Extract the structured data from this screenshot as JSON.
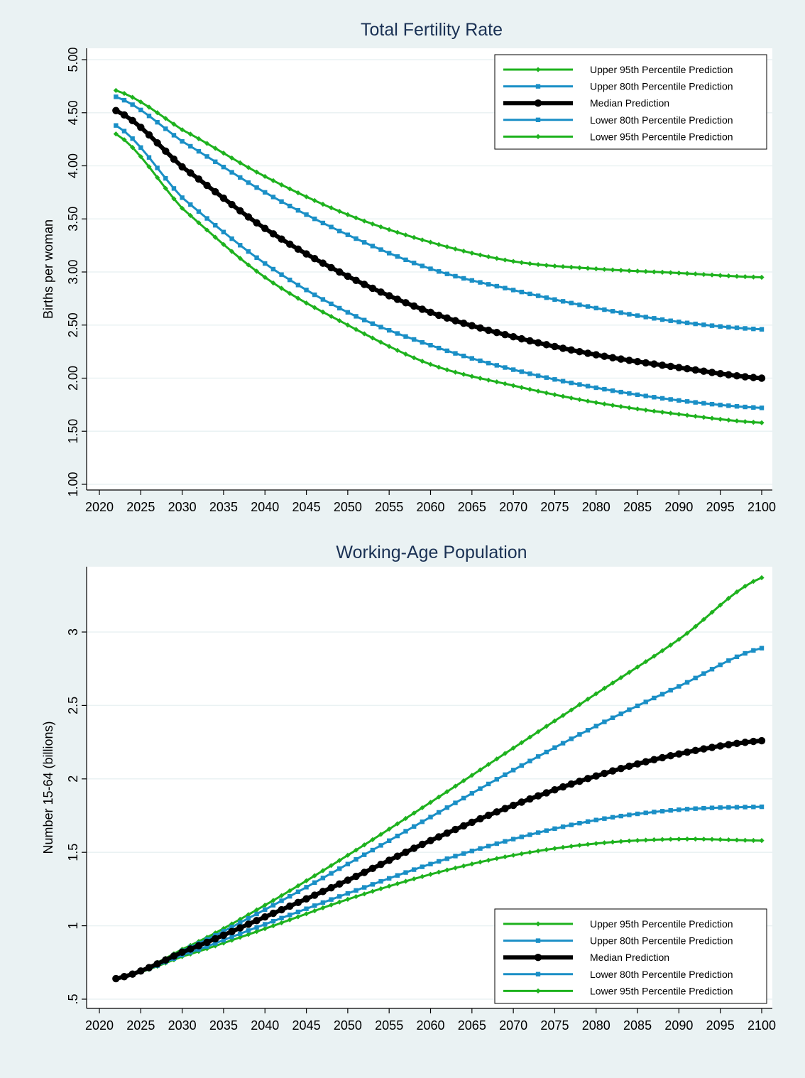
{
  "colors": {
    "background": "#eaf2f3",
    "plot_area": "#ffffff",
    "gridline": "#eaf2f3",
    "title": "#1a3154",
    "green": "#1eb21e",
    "blue": "#1a8fc6",
    "black": "#000000"
  },
  "chart_data": [
    {
      "type": "line",
      "title": "Total Fertility Rate",
      "xlabel": "",
      "ylabel": "Births per woman",
      "xlim": [
        2022,
        2100
      ],
      "ylim": [
        1.0,
        5.0
      ],
      "xticks": [
        2020,
        2025,
        2030,
        2035,
        2040,
        2045,
        2050,
        2055,
        2060,
        2065,
        2070,
        2075,
        2080,
        2085,
        2090,
        2095,
        2100
      ],
      "yticks": [
        1.0,
        1.5,
        2.0,
        2.5,
        3.0,
        3.5,
        4.0,
        4.5,
        5.0
      ],
      "ytick_labels": [
        "1.00",
        "1.50",
        "2.00",
        "2.50",
        "3.00",
        "3.50",
        "4.00",
        "4.50",
        "5.00"
      ],
      "grid": true,
      "legend_position": "top-right",
      "series": [
        {
          "name": "Upper 95th Percentile Prediction",
          "color": "#1eb21e",
          "marker": "diamond",
          "style": "thin",
          "x": [
            2022,
            2030,
            2040,
            2050,
            2060,
            2070,
            2080,
            2090,
            2100
          ],
          "values": [
            4.71,
            4.34,
            3.9,
            3.54,
            3.28,
            3.1,
            3.03,
            2.99,
            2.95
          ]
        },
        {
          "name": "Upper 80th Percentile Prediction",
          "color": "#1a8fc6",
          "marker": "square",
          "style": "thin",
          "x": [
            2022,
            2030,
            2040,
            2050,
            2060,
            2070,
            2080,
            2090,
            2100
          ],
          "values": [
            4.65,
            4.23,
            3.75,
            3.35,
            3.03,
            2.83,
            2.66,
            2.53,
            2.46
          ]
        },
        {
          "name": "Median Prediction",
          "color": "#000000",
          "marker": "circle",
          "style": "thick",
          "x": [
            2022,
            2030,
            2040,
            2050,
            2060,
            2070,
            2080,
            2090,
            2100
          ],
          "values": [
            4.52,
            3.99,
            3.41,
            2.96,
            2.62,
            2.39,
            2.22,
            2.1,
            2.0
          ]
        },
        {
          "name": "Lower 80th Percentile Prediction",
          "color": "#1a8fc6",
          "marker": "square",
          "style": "thin",
          "x": [
            2022,
            2030,
            2040,
            2050,
            2060,
            2070,
            2080,
            2090,
            2100
          ],
          "values": [
            4.38,
            3.7,
            3.08,
            2.62,
            2.31,
            2.08,
            1.91,
            1.79,
            1.72
          ]
        },
        {
          "name": "Lower 95th Percentile Prediction",
          "color": "#1eb21e",
          "marker": "diamond",
          "style": "thin",
          "x": [
            2022,
            2030,
            2040,
            2050,
            2060,
            2070,
            2080,
            2090,
            2100
          ],
          "values": [
            4.3,
            3.6,
            2.95,
            2.5,
            2.13,
            1.93,
            1.77,
            1.66,
            1.58
          ]
        }
      ]
    },
    {
      "type": "line",
      "title": "Working-Age Population",
      "xlabel": "",
      "ylabel": "Number 15-64 (billions)",
      "xlim": [
        2022,
        2100
      ],
      "ylim": [
        0.5,
        3.4
      ],
      "xticks": [
        2020,
        2025,
        2030,
        2035,
        2040,
        2045,
        2050,
        2055,
        2060,
        2065,
        2070,
        2075,
        2080,
        2085,
        2090,
        2095,
        2100
      ],
      "yticks": [
        0.5,
        1.0,
        1.5,
        2.0,
        2.5,
        3.0
      ],
      "ytick_labels": [
        ".5",
        "1",
        "1.5",
        "2",
        "2.5",
        "3"
      ],
      "grid": true,
      "legend_position": "bottom-right",
      "series": [
        {
          "name": "Upper 95th Percentile Prediction",
          "color": "#1eb21e",
          "marker": "diamond",
          "style": "thin",
          "x": [
            2022,
            2030,
            2040,
            2050,
            2060,
            2070,
            2080,
            2090,
            2100
          ],
          "values": [
            0.64,
            0.84,
            1.14,
            1.48,
            1.84,
            2.21,
            2.58,
            2.95,
            3.37
          ]
        },
        {
          "name": "Upper 80th Percentile Prediction",
          "color": "#1a8fc6",
          "marker": "square",
          "style": "thin",
          "x": [
            2022,
            2030,
            2040,
            2050,
            2060,
            2070,
            2080,
            2090,
            2100
          ],
          "values": [
            0.64,
            0.83,
            1.11,
            1.42,
            1.74,
            2.06,
            2.36,
            2.63,
            2.89
          ]
        },
        {
          "name": "Median Prediction",
          "color": "#000000",
          "marker": "circle",
          "style": "thick",
          "x": [
            2022,
            2030,
            2040,
            2050,
            2060,
            2070,
            2080,
            2090,
            2100
          ],
          "values": [
            0.64,
            0.82,
            1.06,
            1.31,
            1.58,
            1.82,
            2.02,
            2.17,
            2.26
          ]
        },
        {
          "name": "Lower 80th Percentile Prediction",
          "color": "#1a8fc6",
          "marker": "square",
          "style": "thin",
          "x": [
            2022,
            2030,
            2040,
            2050,
            2060,
            2070,
            2080,
            2090,
            2100
          ],
          "values": [
            0.64,
            0.8,
            1.01,
            1.22,
            1.42,
            1.59,
            1.72,
            1.79,
            1.81
          ]
        },
        {
          "name": "Lower 95th Percentile Prediction",
          "color": "#1eb21e",
          "marker": "diamond",
          "style": "thin",
          "x": [
            2022,
            2030,
            2040,
            2050,
            2060,
            2070,
            2080,
            2090,
            2100
          ],
          "values": [
            0.64,
            0.79,
            0.98,
            1.18,
            1.35,
            1.48,
            1.56,
            1.59,
            1.58
          ]
        }
      ]
    }
  ]
}
